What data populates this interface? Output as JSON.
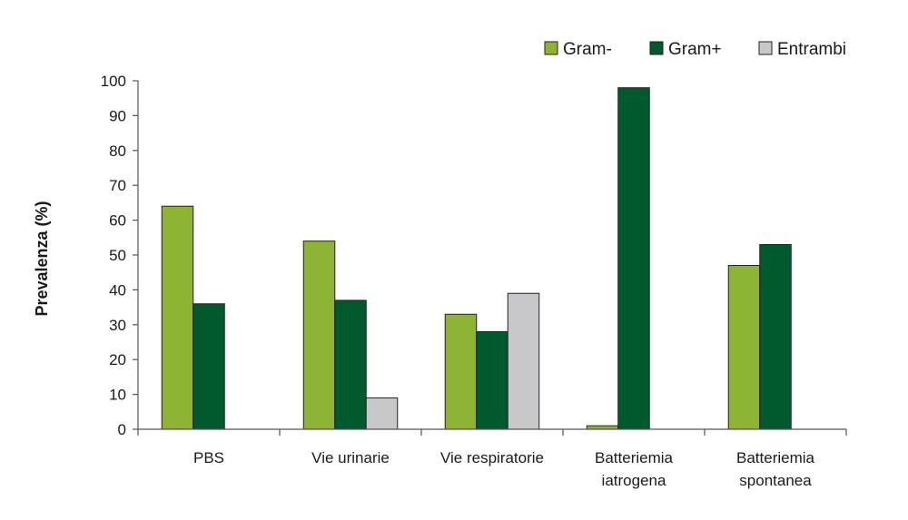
{
  "chart_data": {
    "type": "bar",
    "title": "",
    "xlabel": "",
    "ylabel": "Prevalenza (%)",
    "ylim": [
      0,
      100
    ],
    "yticks": [
      0,
      10,
      20,
      30,
      40,
      50,
      60,
      70,
      80,
      90,
      100
    ],
    "grid": false,
    "legend_position": "top-right",
    "categories": [
      [
        "PBS"
      ],
      [
        "Vie urinarie"
      ],
      [
        "Vie respiratorie"
      ],
      [
        "Batteriemia",
        "iatrogena"
      ],
      [
        "Batteriemia",
        "spontanea"
      ]
    ],
    "series": [
      {
        "name": "Gram-",
        "color": "#8db533",
        "values": [
          64,
          54,
          33,
          1,
          47
        ]
      },
      {
        "name": "Gram+",
        "color": "#005a2b",
        "values": [
          36,
          37,
          28,
          98,
          53
        ]
      },
      {
        "name": "Entrambi",
        "color": "#c8c8cb",
        "values": [
          0,
          9,
          39,
          0,
          0
        ]
      }
    ]
  }
}
